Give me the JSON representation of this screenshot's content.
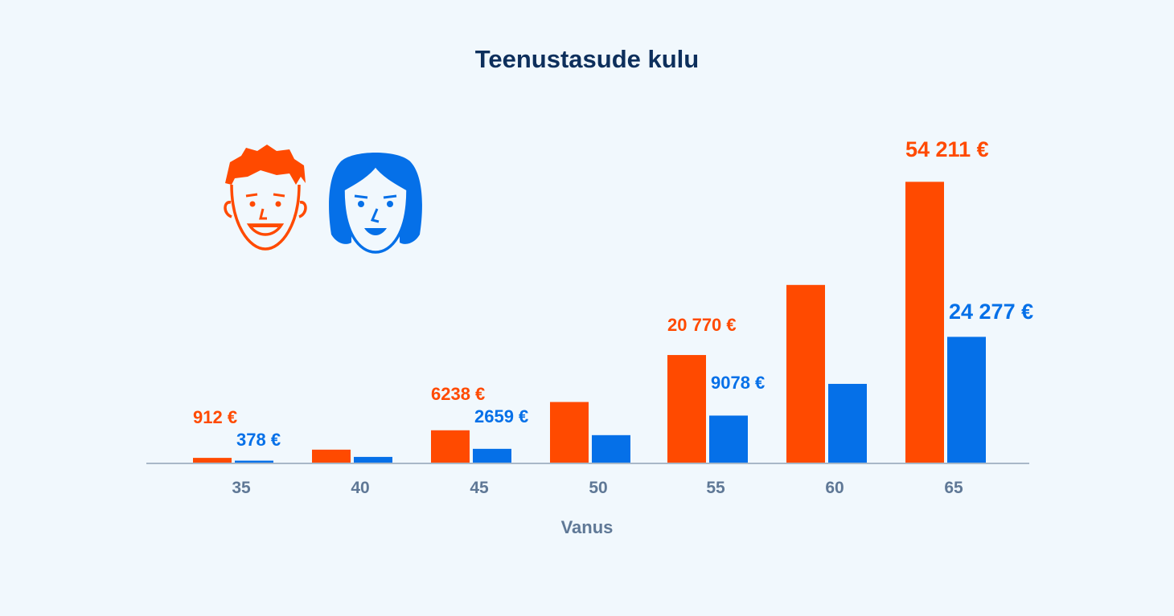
{
  "title": "Teenustasude kulu",
  "colors": {
    "men": "#ff4a00",
    "women": "#0570e8",
    "axis": "#a9b8c8",
    "text": "#5f7896",
    "title": "#0d2f5c",
    "background": "#f1f8fd"
  },
  "legend_icons": [
    "male-face-icon",
    "female-face-icon"
  ],
  "chart_data": {
    "type": "bar",
    "title": "Teenustasude kulu",
    "xlabel": "Vanus",
    "ylabel": "",
    "categories": [
      "35",
      "40",
      "45",
      "50",
      "55",
      "60",
      "65"
    ],
    "ylim": [
      0,
      57000
    ],
    "grid": false,
    "series": [
      {
        "color": "#ff4a00",
        "values": [
          912,
          2500,
          6238,
          11700,
          20770,
          34300,
          54211
        ],
        "labels": [
          "912 €",
          "",
          "6238 €",
          "",
          "20 770 €",
          "",
          "54 211 €"
        ]
      },
      {
        "color": "#0570e8",
        "values": [
          378,
          1100,
          2659,
          5300,
          9078,
          15200,
          24277
        ],
        "labels": [
          "378 €",
          "",
          "2659 €",
          "",
          "9078 €",
          "",
          "24 277 €"
        ]
      }
    ]
  }
}
